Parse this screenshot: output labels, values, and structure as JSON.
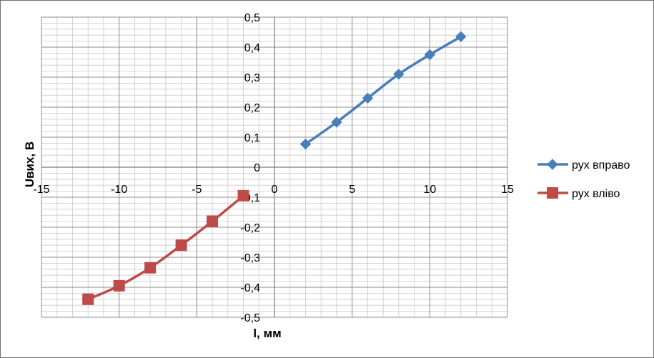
{
  "chart_data": {
    "type": "line",
    "title": "",
    "xlabel": "l, мм",
    "ylabel": "Uвих, В",
    "xlim": [
      -15,
      15
    ],
    "ylim": [
      -0.5,
      0.5
    ],
    "x_major_step": 5,
    "y_major_step": 0.1,
    "x_minor_step": 1,
    "y_minor_step": 0.02,
    "x_tick_labels": [
      "-15",
      "-10",
      "-5",
      "0",
      "5",
      "10",
      "15"
    ],
    "y_tick_labels": [
      "-0,5",
      "-0,4",
      "-0,3",
      "-0,2",
      "-0,1",
      "0",
      "0,1",
      "0,2",
      "0,3",
      "0,4",
      "0,5"
    ],
    "grid": true,
    "legend_position": "right",
    "series": [
      {
        "name": "рух вправо",
        "color": "#4a7ebb",
        "marker": "diamond",
        "x": [
          2,
          4,
          6,
          8,
          10,
          12
        ],
        "y": [
          0.077,
          0.15,
          0.23,
          0.31,
          0.375,
          0.435
        ]
      },
      {
        "name": "рух вліво",
        "color": "#be4b48",
        "marker": "square",
        "x": [
          -2,
          -4,
          -6,
          -8,
          -10,
          -12
        ],
        "y": [
          -0.095,
          -0.18,
          -0.26,
          -0.335,
          -0.395,
          -0.44
        ]
      }
    ]
  }
}
